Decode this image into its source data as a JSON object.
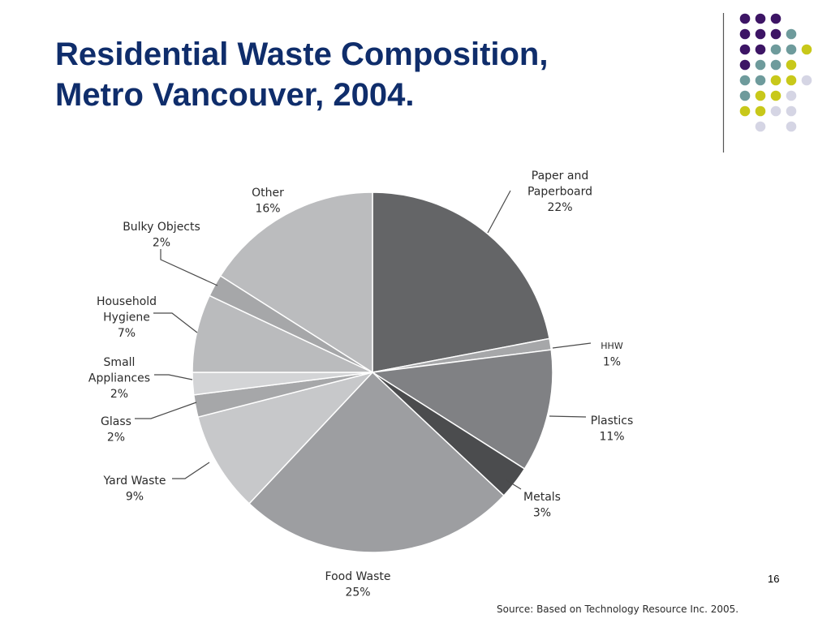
{
  "slide": {
    "title_line1": "Residential Waste Composition,",
    "title_line2": "Metro Vancouver, 2004.",
    "slide_number": "16",
    "source": "Source: Based on Technology Resource Inc. 2005."
  },
  "decoration": {
    "dot_colors": {
      "purple": "#3d1565",
      "teal": "#6e9b9c",
      "yellow": "#c8c81a",
      "lavender": "#d5d5e4"
    }
  },
  "chart_data": {
    "type": "pie",
    "title": "",
    "slices": [
      {
        "key": "paper",
        "label_lines": [
          "Paper and",
          "Paperboard"
        ],
        "pct_label": "22%",
        "value": 22,
        "color": "#646567"
      },
      {
        "key": "hhw",
        "label_lines": [
          "HHW"
        ],
        "pct_label": "1%",
        "value": 1,
        "color": "#a6a7a9"
      },
      {
        "key": "plastics",
        "label_lines": [
          "Plastics"
        ],
        "pct_label": "11%",
        "value": 11,
        "color": "#808184"
      },
      {
        "key": "metals",
        "label_lines": [
          "Metals"
        ],
        "pct_label": "3%",
        "value": 3,
        "color": "#4b4c4e"
      },
      {
        "key": "food",
        "label_lines": [
          "Food Waste"
        ],
        "pct_label": "25%",
        "value": 25,
        "color": "#9d9ea1"
      },
      {
        "key": "yard",
        "label_lines": [
          "Yard Waste"
        ],
        "pct_label": "9%",
        "value": 9,
        "color": "#c7c8ca"
      },
      {
        "key": "glass",
        "label_lines": [
          "Glass"
        ],
        "pct_label": "2%",
        "value": 2,
        "color": "#a6a7a9"
      },
      {
        "key": "small-appliances",
        "label_lines": [
          "Small",
          "Appliances"
        ],
        "pct_label": "2%",
        "value": 2,
        "color": "#d3d4d6"
      },
      {
        "key": "household-hygiene",
        "label_lines": [
          "Household",
          "Hygiene"
        ],
        "pct_label": "7%",
        "value": 7,
        "color": "#babbbd"
      },
      {
        "key": "bulky-objects",
        "label_lines": [
          "Bulky Objects"
        ],
        "pct_label": "2%",
        "value": 2,
        "color": "#a6a7a9"
      },
      {
        "key": "other",
        "label_lines": [
          "Other"
        ],
        "pct_label": "16%",
        "value": 16,
        "color": "#bbbcbe"
      }
    ]
  }
}
